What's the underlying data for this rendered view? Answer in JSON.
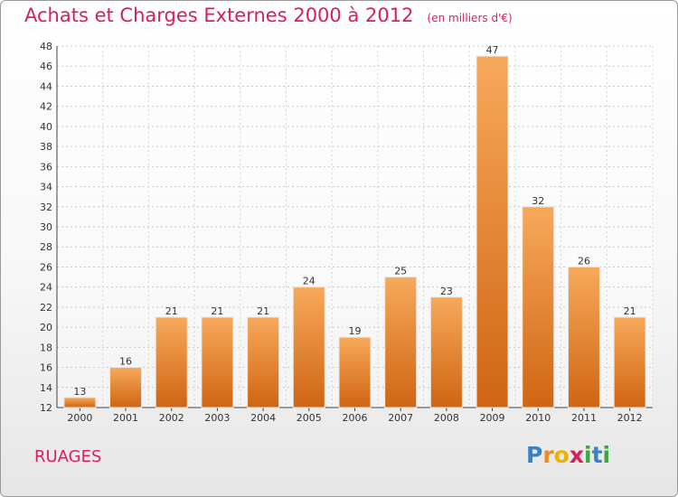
{
  "chart_data": {
    "type": "bar",
    "title": "Achats et Charges Externes 2000 à 2012",
    "subtitle": "(en milliers d'€)",
    "categories": [
      "2000",
      "2001",
      "2002",
      "2003",
      "2004",
      "2005",
      "2006",
      "2007",
      "2008",
      "2009",
      "2010",
      "2011",
      "2012"
    ],
    "values": [
      13,
      16,
      21,
      21,
      21,
      24,
      19,
      25,
      23,
      47,
      32,
      26,
      21
    ],
    "ylim": [
      12,
      48
    ],
    "yticks": [
      12,
      14,
      16,
      18,
      20,
      22,
      24,
      26,
      28,
      30,
      32,
      34,
      36,
      38,
      40,
      42,
      44,
      46,
      48
    ],
    "grid": true,
    "xlabel": "",
    "ylabel": ""
  },
  "commune": "RUAGES",
  "logo": {
    "letters": [
      "P",
      "r",
      "o",
      "x",
      "i",
      "t",
      "i"
    ],
    "colors": [
      "#3b82c4",
      "#f08a1c",
      "#e8b400",
      "#d91f5b",
      "#3aa83a",
      "#3b82c4",
      "#3aa83a"
    ]
  },
  "colors": {
    "accent": "#d91f5b",
    "bar_light": "#f7a95a",
    "bar_dark": "#cf6512"
  }
}
